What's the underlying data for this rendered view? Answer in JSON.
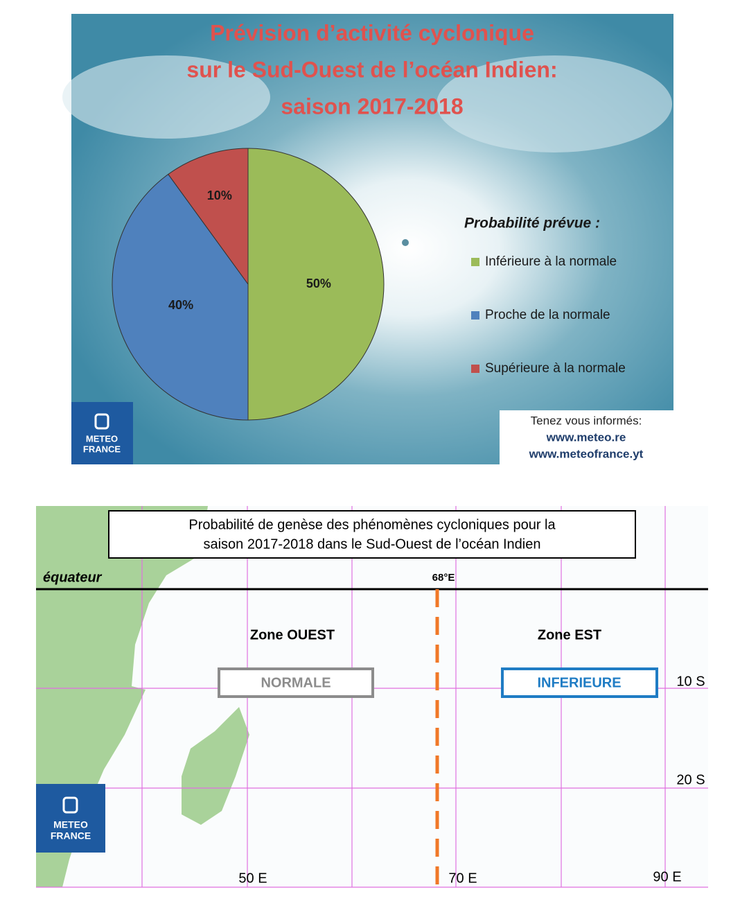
{
  "chart_data": {
    "type": "pie",
    "title": [
      "Prévision d’activité cyclonique",
      "sur le Sud-Ouest de l’océan Indien:",
      "saison 2017-2018"
    ],
    "legend_title": "Probabilité prévue :",
    "categories": [
      "Inférieure à la normale",
      "Proche de la normale",
      "Supérieure à la normale"
    ],
    "values": [
      50,
      40,
      10
    ],
    "value_labels": [
      "50%",
      "40%",
      "10%"
    ],
    "colors": [
      "#9bbb59",
      "#4f81bd",
      "#c0504d"
    ],
    "legend": "right"
  },
  "logo": [
    "METEO",
    "FRANCE"
  ],
  "info_box": [
    "Tenez vous informés:",
    "www.meteo.re",
    "www.meteofrance.yt"
  ],
  "map": {
    "title": [
      "Probabilité de genèse des phénomènes cycloniques pour la",
      "saison 2017-2018 dans le Sud-Ouest de l’océan Indien"
    ],
    "equator": "équateur",
    "divide": "68°E",
    "zones": [
      {
        "name": "Zone OUEST",
        "forecast": "NORMALE"
      },
      {
        "name": "Zone EST",
        "forecast": "INFERIEURE"
      }
    ],
    "lon_labels": [
      "50 E",
      "70 E",
      "90 E"
    ],
    "lat_labels": [
      "10 S",
      "20 S"
    ]
  }
}
